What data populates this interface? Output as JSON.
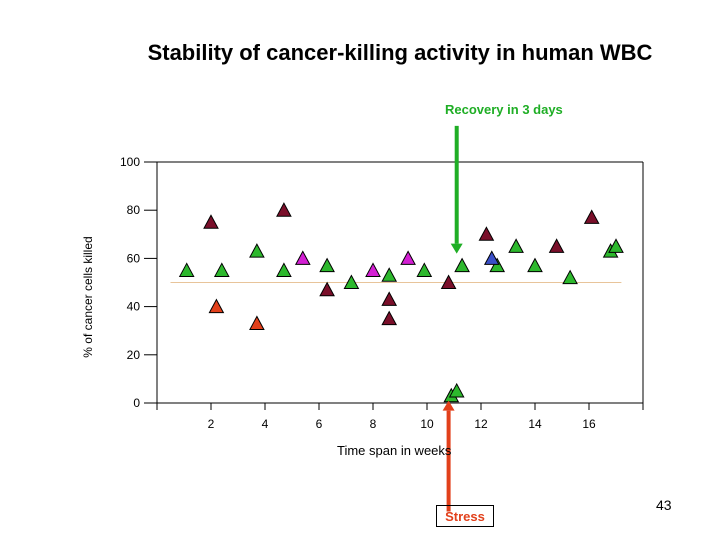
{
  "slide": {
    "title": "Stability of cancer-killing activity in human WBC",
    "page_number": "43"
  },
  "annotations": {
    "recovery": {
      "text": "Recovery in 3 days",
      "color": "#1FAE25"
    },
    "stress": {
      "text": "Stress",
      "color": "#E2401B"
    }
  },
  "chart_data": {
    "type": "scatter",
    "title": "Stability of cancer-killing activity in human WBC",
    "xlabel": "Time span in weeks",
    "ylabel": "% of cancer cells killed",
    "xlim": [
      0,
      18
    ],
    "ylim": [
      0,
      100
    ],
    "xticks": [
      2,
      4,
      6,
      8,
      10,
      12,
      14,
      16
    ],
    "yticks": [
      0,
      20,
      40,
      60,
      80,
      100
    ],
    "reference_line": {
      "y": 50,
      "x_range": [
        0.5,
        17.2
      ],
      "color": "#E8C49A"
    },
    "arrows": [
      {
        "label": "Recovery in 3 days",
        "x": 11.1,
        "from_y": 115,
        "to_y": 62,
        "color": "#1FAE25"
      },
      {
        "label": "Stress",
        "x": 10.8,
        "from_y": -45,
        "to_y": 1,
        "color": "#E2401B"
      }
    ],
    "series": [
      {
        "name": "green",
        "color": "#2DB82D",
        "points": [
          {
            "x": 1.1,
            "y": 55
          },
          {
            "x": 2.4,
            "y": 55
          },
          {
            "x": 3.7,
            "y": 63
          },
          {
            "x": 4.7,
            "y": 55
          },
          {
            "x": 6.3,
            "y": 57
          },
          {
            "x": 7.2,
            "y": 50
          },
          {
            "x": 8.6,
            "y": 53
          },
          {
            "x": 9.9,
            "y": 55
          },
          {
            "x": 10.9,
            "y": 3
          },
          {
            "x": 11.1,
            "y": 5
          },
          {
            "x": 11.3,
            "y": 57
          },
          {
            "x": 12.6,
            "y": 57
          },
          {
            "x": 13.3,
            "y": 65
          },
          {
            "x": 14.0,
            "y": 57
          },
          {
            "x": 15.3,
            "y": 52
          },
          {
            "x": 16.8,
            "y": 63
          },
          {
            "x": 17.0,
            "y": 65
          }
        ]
      },
      {
        "name": "dark red",
        "color": "#7A0F2A",
        "points": [
          {
            "x": 2.0,
            "y": 75
          },
          {
            "x": 4.7,
            "y": 80
          },
          {
            "x": 6.3,
            "y": 47
          },
          {
            "x": 8.6,
            "y": 43
          },
          {
            "x": 8.6,
            "y": 35
          },
          {
            "x": 10.8,
            "y": 50
          },
          {
            "x": 12.2,
            "y": 70
          },
          {
            "x": 14.8,
            "y": 65
          },
          {
            "x": 16.1,
            "y": 77
          }
        ]
      },
      {
        "name": "magenta",
        "color": "#D31FD3",
        "points": [
          {
            "x": 5.4,
            "y": 60
          },
          {
            "x": 8.0,
            "y": 55
          },
          {
            "x": 9.3,
            "y": 60
          }
        ]
      },
      {
        "name": "orange-red",
        "color": "#E2401B",
        "points": [
          {
            "x": 2.2,
            "y": 40
          },
          {
            "x": 3.7,
            "y": 33
          }
        ]
      },
      {
        "name": "blue",
        "color": "#3A4FC8",
        "points": [
          {
            "x": 12.4,
            "y": 60
          }
        ]
      }
    ]
  }
}
